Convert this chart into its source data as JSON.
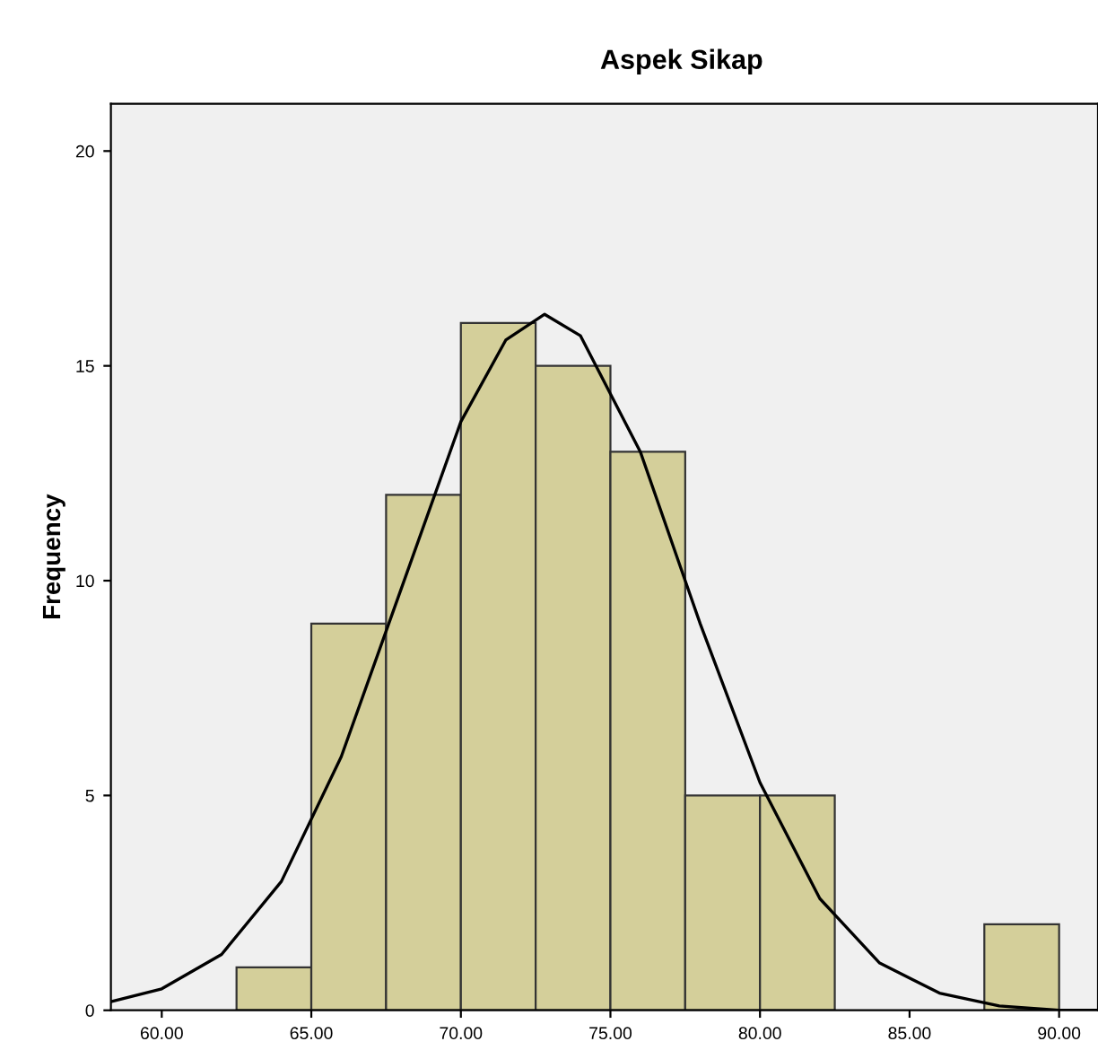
{
  "chart_data": {
    "type": "histogram",
    "title": "Aspek Sikap",
    "ylabel": "Frequency",
    "xlim": [
      58.3,
      91.3
    ],
    "ylim": [
      0,
      21.1
    ],
    "xticks": [
      {
        "value": 60,
        "label": "60.00"
      },
      {
        "value": 65,
        "label": "65.00"
      },
      {
        "value": 70,
        "label": "70.00"
      },
      {
        "value": 75,
        "label": "75.00"
      },
      {
        "value": 80,
        "label": "80.00"
      },
      {
        "value": 85,
        "label": "85.00"
      },
      {
        "value": 90,
        "label": "90.00"
      }
    ],
    "yticks": [
      0,
      5,
      10,
      15,
      20
    ],
    "grid": false,
    "legend": false,
    "series": [
      {
        "color": "#d4cf9a",
        "bins": [
          62.5,
          65,
          67.5,
          70,
          72.5,
          75,
          77.5,
          80,
          82.5,
          85,
          87.5,
          90
        ],
        "values": [
          1,
          9,
          12,
          16,
          15,
          13,
          5,
          5,
          0,
          0,
          2
        ]
      },
      {
        "type": "line",
        "color": "#000000",
        "x": [
          58.3,
          60,
          62,
          64,
          66,
          68,
          70,
          71.5,
          72.8,
          74,
          76,
          78,
          80,
          82,
          84,
          86,
          88,
          90,
          91.3
        ],
        "values": [
          0.2,
          0.5,
          1.3,
          3.0,
          5.9,
          9.8,
          13.7,
          15.6,
          16.2,
          15.7,
          13.0,
          9.0,
          5.3,
          2.6,
          1.1,
          0.4,
          0.1,
          0.0,
          0.0
        ]
      }
    ]
  }
}
